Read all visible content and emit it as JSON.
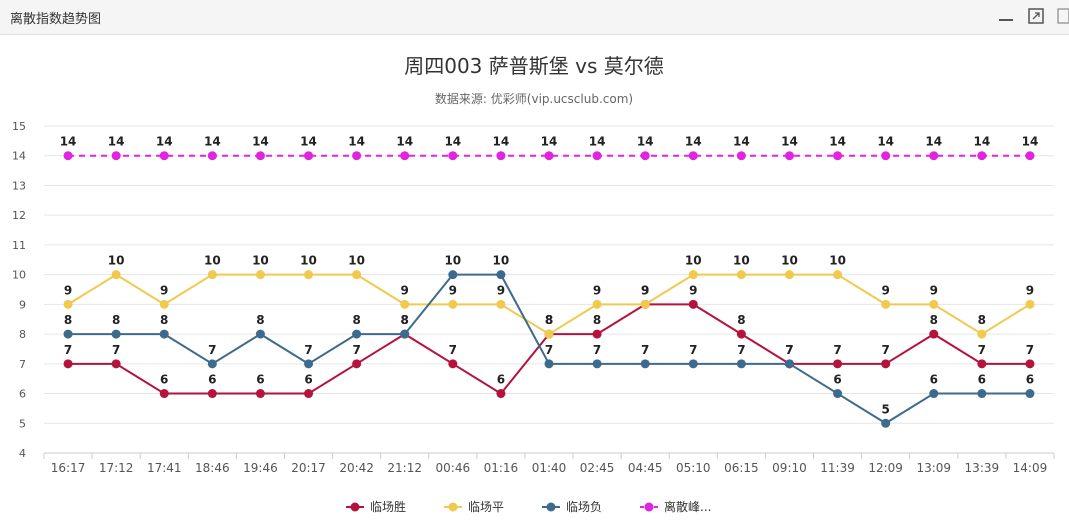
{
  "window": {
    "title": "离散指数趋势图"
  },
  "colors": {
    "win": "#b5123e",
    "draw": "#f0c94f",
    "lose": "#3c6b8e",
    "peak": "#e024e0"
  },
  "chart_data": {
    "type": "line",
    "title": "周四003 萨普斯堡 vs 莫尔德",
    "subtitle": "数据来源: 优彩师(vip.ucsclub.com)",
    "categories": [
      "16:17",
      "17:12",
      "17:41",
      "18:46",
      "19:46",
      "20:17",
      "20:42",
      "21:12",
      "00:46",
      "01:16",
      "01:40",
      "02:45",
      "04:45",
      "05:10",
      "06:15",
      "09:10",
      "11:39",
      "12:09",
      "13:09",
      "13:39",
      "14:09"
    ],
    "ylim": [
      4,
      15
    ],
    "yticks": [
      4,
      5,
      6,
      7,
      8,
      9,
      10,
      11,
      12,
      13,
      14,
      15
    ],
    "series": [
      {
        "key": "win",
        "name": "临场胜",
        "values": [
          7,
          7,
          6,
          6,
          6,
          6,
          7,
          8,
          7,
          6,
          8,
          8,
          9,
          9,
          8,
          7,
          7,
          7,
          8,
          7,
          7
        ]
      },
      {
        "key": "draw",
        "name": "临场平",
        "values": [
          9,
          10,
          9,
          10,
          10,
          10,
          10,
          9,
          9,
          9,
          8,
          9,
          9,
          10,
          10,
          10,
          10,
          9,
          9,
          8,
          9
        ]
      },
      {
        "key": "lose",
        "name": "临场负",
        "values": [
          8,
          8,
          8,
          7,
          8,
          7,
          8,
          8,
          10,
          10,
          7,
          7,
          7,
          7,
          7,
          7,
          6,
          5,
          6,
          6,
          6
        ]
      },
      {
        "key": "peak",
        "name": "离散峰...",
        "values": [
          14,
          14,
          14,
          14,
          14,
          14,
          14,
          14,
          14,
          14,
          14,
          14,
          14,
          14,
          14,
          14,
          14,
          14,
          14,
          14,
          14
        ],
        "dashed": true
      }
    ]
  }
}
